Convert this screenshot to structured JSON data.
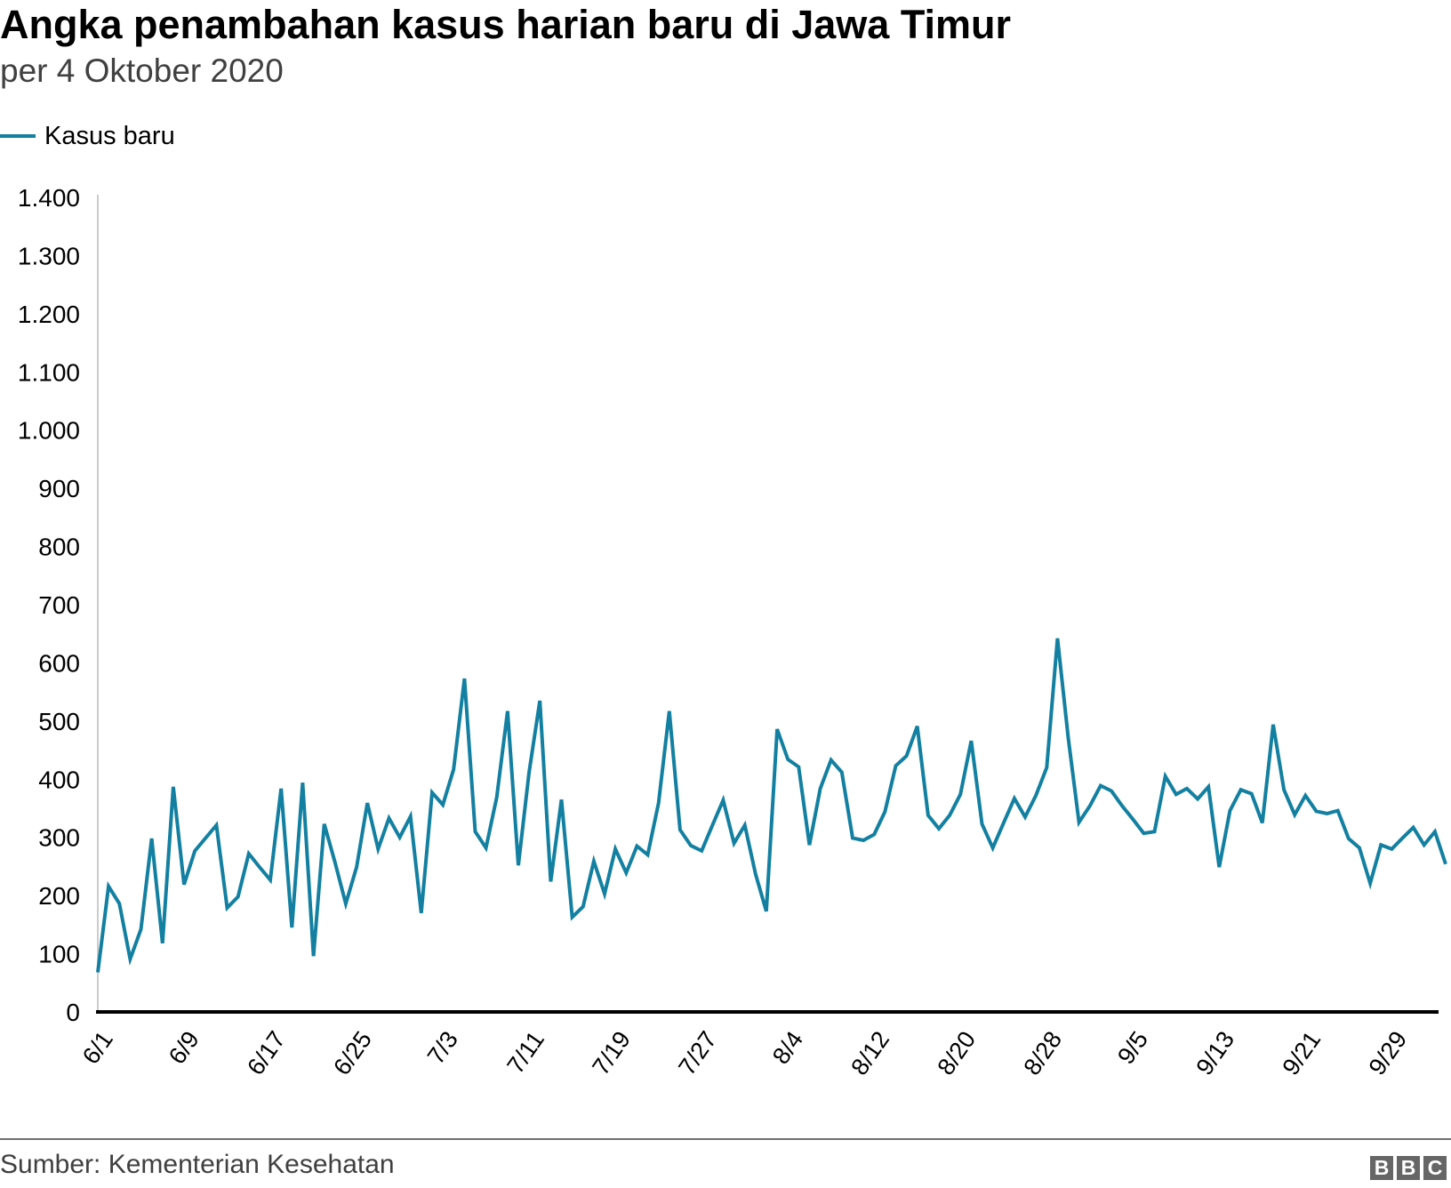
{
  "header": {
    "title": "Angka penambahan kasus harian baru di Jawa Timur",
    "subtitle": "per 4 Oktober 2020"
  },
  "legend": {
    "label": "Kasus baru",
    "color": "#1380a1"
  },
  "footer": {
    "source": "Sumber: Kementerian Kesehatan",
    "logo_letters": [
      "B",
      "B",
      "C"
    ]
  },
  "chart_data": {
    "type": "line",
    "title": "Angka penambahan kasus harian baru di Jawa Timur",
    "subtitle": "per 4 Oktober 2020",
    "xlabel": "",
    "ylabel": "",
    "ylim": [
      0,
      1400
    ],
    "yticks": [
      0,
      100,
      200,
      300,
      400,
      500,
      600,
      700,
      800,
      900,
      1000,
      1100,
      1200,
      1300,
      1400
    ],
    "ytick_labels": [
      "0",
      "100",
      "200",
      "300",
      "400",
      "500",
      "600",
      "700",
      "800",
      "900",
      "1.000",
      "1.100",
      "1.200",
      "1.300",
      "1.400"
    ],
    "xtick_labels": [
      "6/1",
      "6/9",
      "6/17",
      "6/25",
      "7/3",
      "7/11",
      "7/19",
      "7/27",
      "8/4",
      "8/12",
      "8/20",
      "8/28",
      "9/5",
      "9/13",
      "9/21",
      "9/29"
    ],
    "xtick_interval_days": 8,
    "x_start": "6/1",
    "x_end": "10/4",
    "grid": false,
    "legend_position": "top-left",
    "series": [
      {
        "name": "Kasus baru",
        "color": "#1380a1",
        "values": [
          68,
          216,
          186,
          91,
          142,
          298,
          118,
          387,
          219,
          277,
          299,
          321,
          179,
          198,
          272,
          249,
          227,
          384,
          145,
          394,
          96,
          323,
          257,
          186,
          249,
          359,
          280,
          333,
          300,
          336,
          170,
          377,
          356,
          417,
          573,
          310,
          282,
          369,
          517,
          252,
          412,
          535,
          224,
          365,
          163,
          181,
          259,
          203,
          280,
          239,
          285,
          270,
          359,
          517,
          313,
          286,
          277,
          321,
          364,
          290,
          321,
          237,
          173,
          486,
          434,
          421,
          287,
          384,
          433,
          412,
          299,
          295,
          305,
          344,
          423,
          440,
          491,
          338,
          315,
          338,
          374,
          466,
          323,
          282,
          325,
          367,
          335,
          372,
          420,
          642,
          471,
          326,
          354,
          389,
          380,
          354,
          331,
          307,
          310,
          405,
          374,
          384,
          366,
          387,
          249,
          346,
          382,
          375,
          325,
          494,
          382,
          339,
          372,
          345,
          341,
          346,
          298,
          282,
          221,
          287,
          280,
          299,
          317,
          287,
          310,
          254
        ]
      }
    ]
  }
}
